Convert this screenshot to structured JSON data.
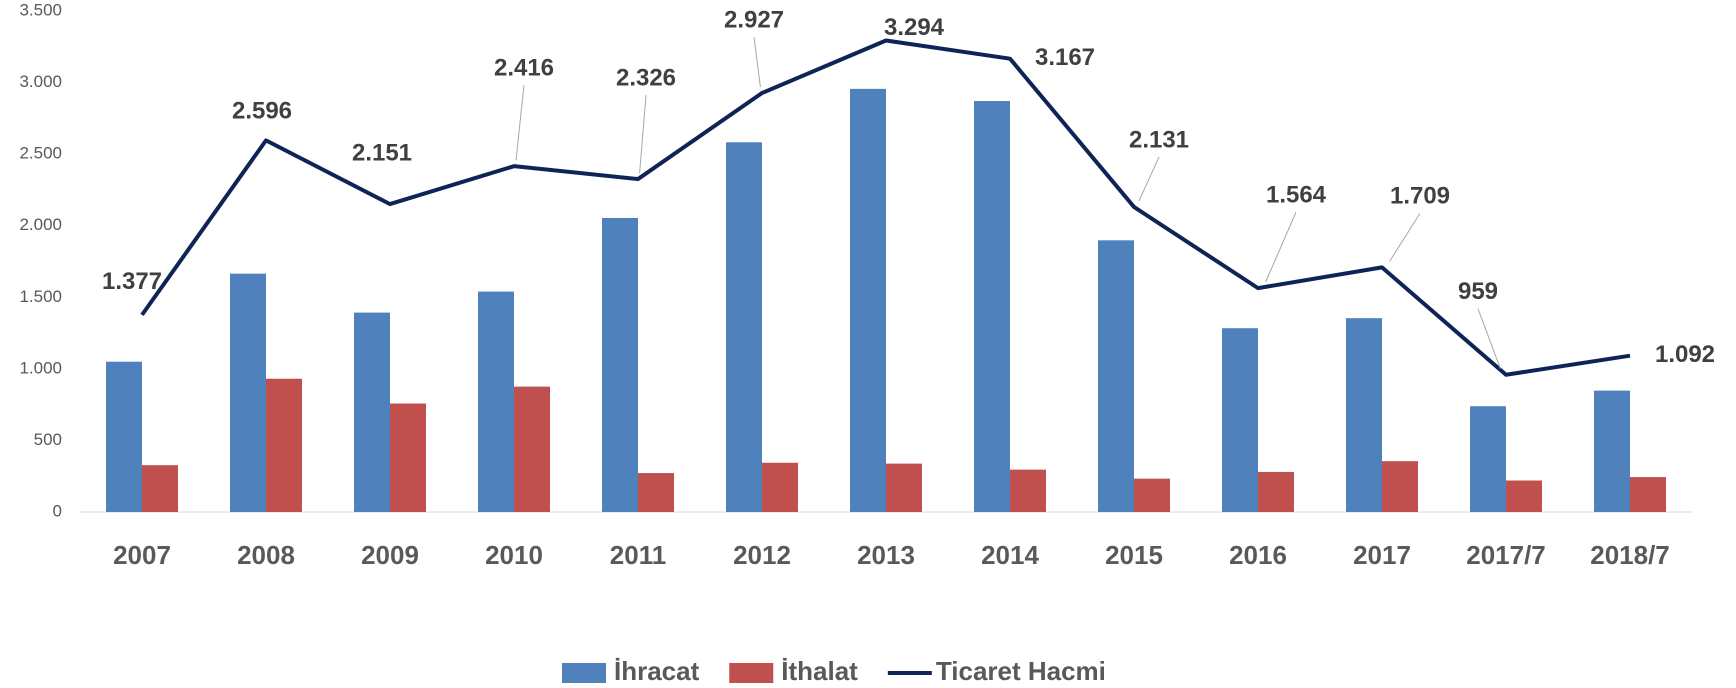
{
  "chart_data": {
    "type": "bar-line",
    "categories": [
      "2007",
      "2008",
      "2009",
      "2010",
      "2011",
      "2012",
      "2013",
      "2014",
      "2015",
      "2016",
      "2017",
      "2017/7",
      "2018/7"
    ],
    "series": [
      {
        "name": "İhracat",
        "type": "bar",
        "color": "#4f81bd",
        "values": [
          1050,
          1665,
          1393,
          1540,
          2054,
          2583,
          2956,
          2871,
          1898,
          1284,
          1354,
          739,
          848
        ]
      },
      {
        "name": "İthalat",
        "type": "bar",
        "color": "#c0504d",
        "values": [
          327,
          931,
          758,
          876,
          272,
          344,
          338,
          296,
          233,
          280,
          355,
          220,
          244
        ]
      },
      {
        "name": "Ticaret Hacmi",
        "type": "line",
        "color": "#0f2456",
        "values": [
          1377,
          2596,
          2151,
          2416,
          2326,
          2927,
          3294,
          3167,
          2131,
          1564,
          1709,
          959,
          1092
        ],
        "value_labels": [
          "1.377",
          "2.596",
          "2.151",
          "2.416",
          "2.326",
          "2.927",
          "3.294",
          "3.167",
          "2.131",
          "1.564",
          "1.709",
          "959",
          "1.092"
        ]
      }
    ],
    "ylim": [
      0,
      3500
    ],
    "yticks": [
      0,
      500,
      {
        "value": 1000,
        "label": "1.000"
      },
      {
        "value": 1500,
        "label": "1.500"
      },
      {
        "value": 2000,
        "label": "2.000"
      },
      {
        "value": 2500,
        "label": "2.500"
      },
      {
        "value": 3000,
        "label": "3.000"
      },
      {
        "value": 3500,
        "label": "3.500"
      }
    ],
    "legend": "bottom"
  }
}
